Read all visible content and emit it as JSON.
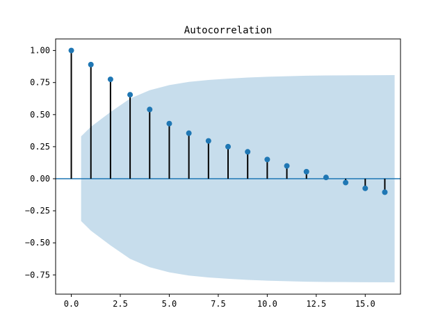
{
  "chart_data": {
    "type": "stem",
    "title": "Autocorrelation",
    "xlabel": "",
    "ylabel": "",
    "xlim": [
      -0.8,
      16.8
    ],
    "ylim": [
      -0.9,
      1.09
    ],
    "grid": false,
    "legend": "none",
    "x_ticks": [
      0.0,
      2.5,
      5.0,
      7.5,
      10.0,
      12.5,
      15.0
    ],
    "x_tick_labels": [
      "0.0",
      "2.5",
      "5.0",
      "7.5",
      "10.0",
      "12.5",
      "15.0"
    ],
    "y_ticks": [
      1.0,
      0.75,
      0.5,
      0.25,
      0.0,
      -0.25,
      -0.5,
      -0.75
    ],
    "y_tick_labels": [
      "1.00",
      "0.75",
      "0.50",
      "0.25",
      "0.00",
      "−0.25",
      "−0.50",
      "−0.75"
    ],
    "lags": [
      0,
      1,
      2,
      3,
      4,
      5,
      6,
      7,
      8,
      9,
      10,
      11,
      12,
      13,
      14,
      15,
      16
    ],
    "values": [
      1.0,
      0.89,
      0.775,
      0.655,
      0.54,
      0.43,
      0.355,
      0.295,
      0.25,
      0.21,
      0.15,
      0.1,
      0.055,
      0.01,
      -0.03,
      -0.075,
      -0.105
    ],
    "confidence_band": {
      "x": [
        0.5,
        1,
        2,
        3,
        4,
        5,
        6,
        7,
        8,
        9,
        10,
        11,
        12,
        13,
        14,
        15,
        16.5
      ],
      "upper": [
        0.33,
        0.405,
        0.52,
        0.625,
        0.69,
        0.73,
        0.755,
        0.77,
        0.78,
        0.789,
        0.795,
        0.799,
        0.803,
        0.805,
        0.806,
        0.807,
        0.808
      ]
    },
    "colors": {
      "marker": "#1f77b4",
      "stem": "#000000",
      "zero_line": "#1f77b4",
      "band": "#1f77b4",
      "band_opacity": 0.25
    }
  }
}
